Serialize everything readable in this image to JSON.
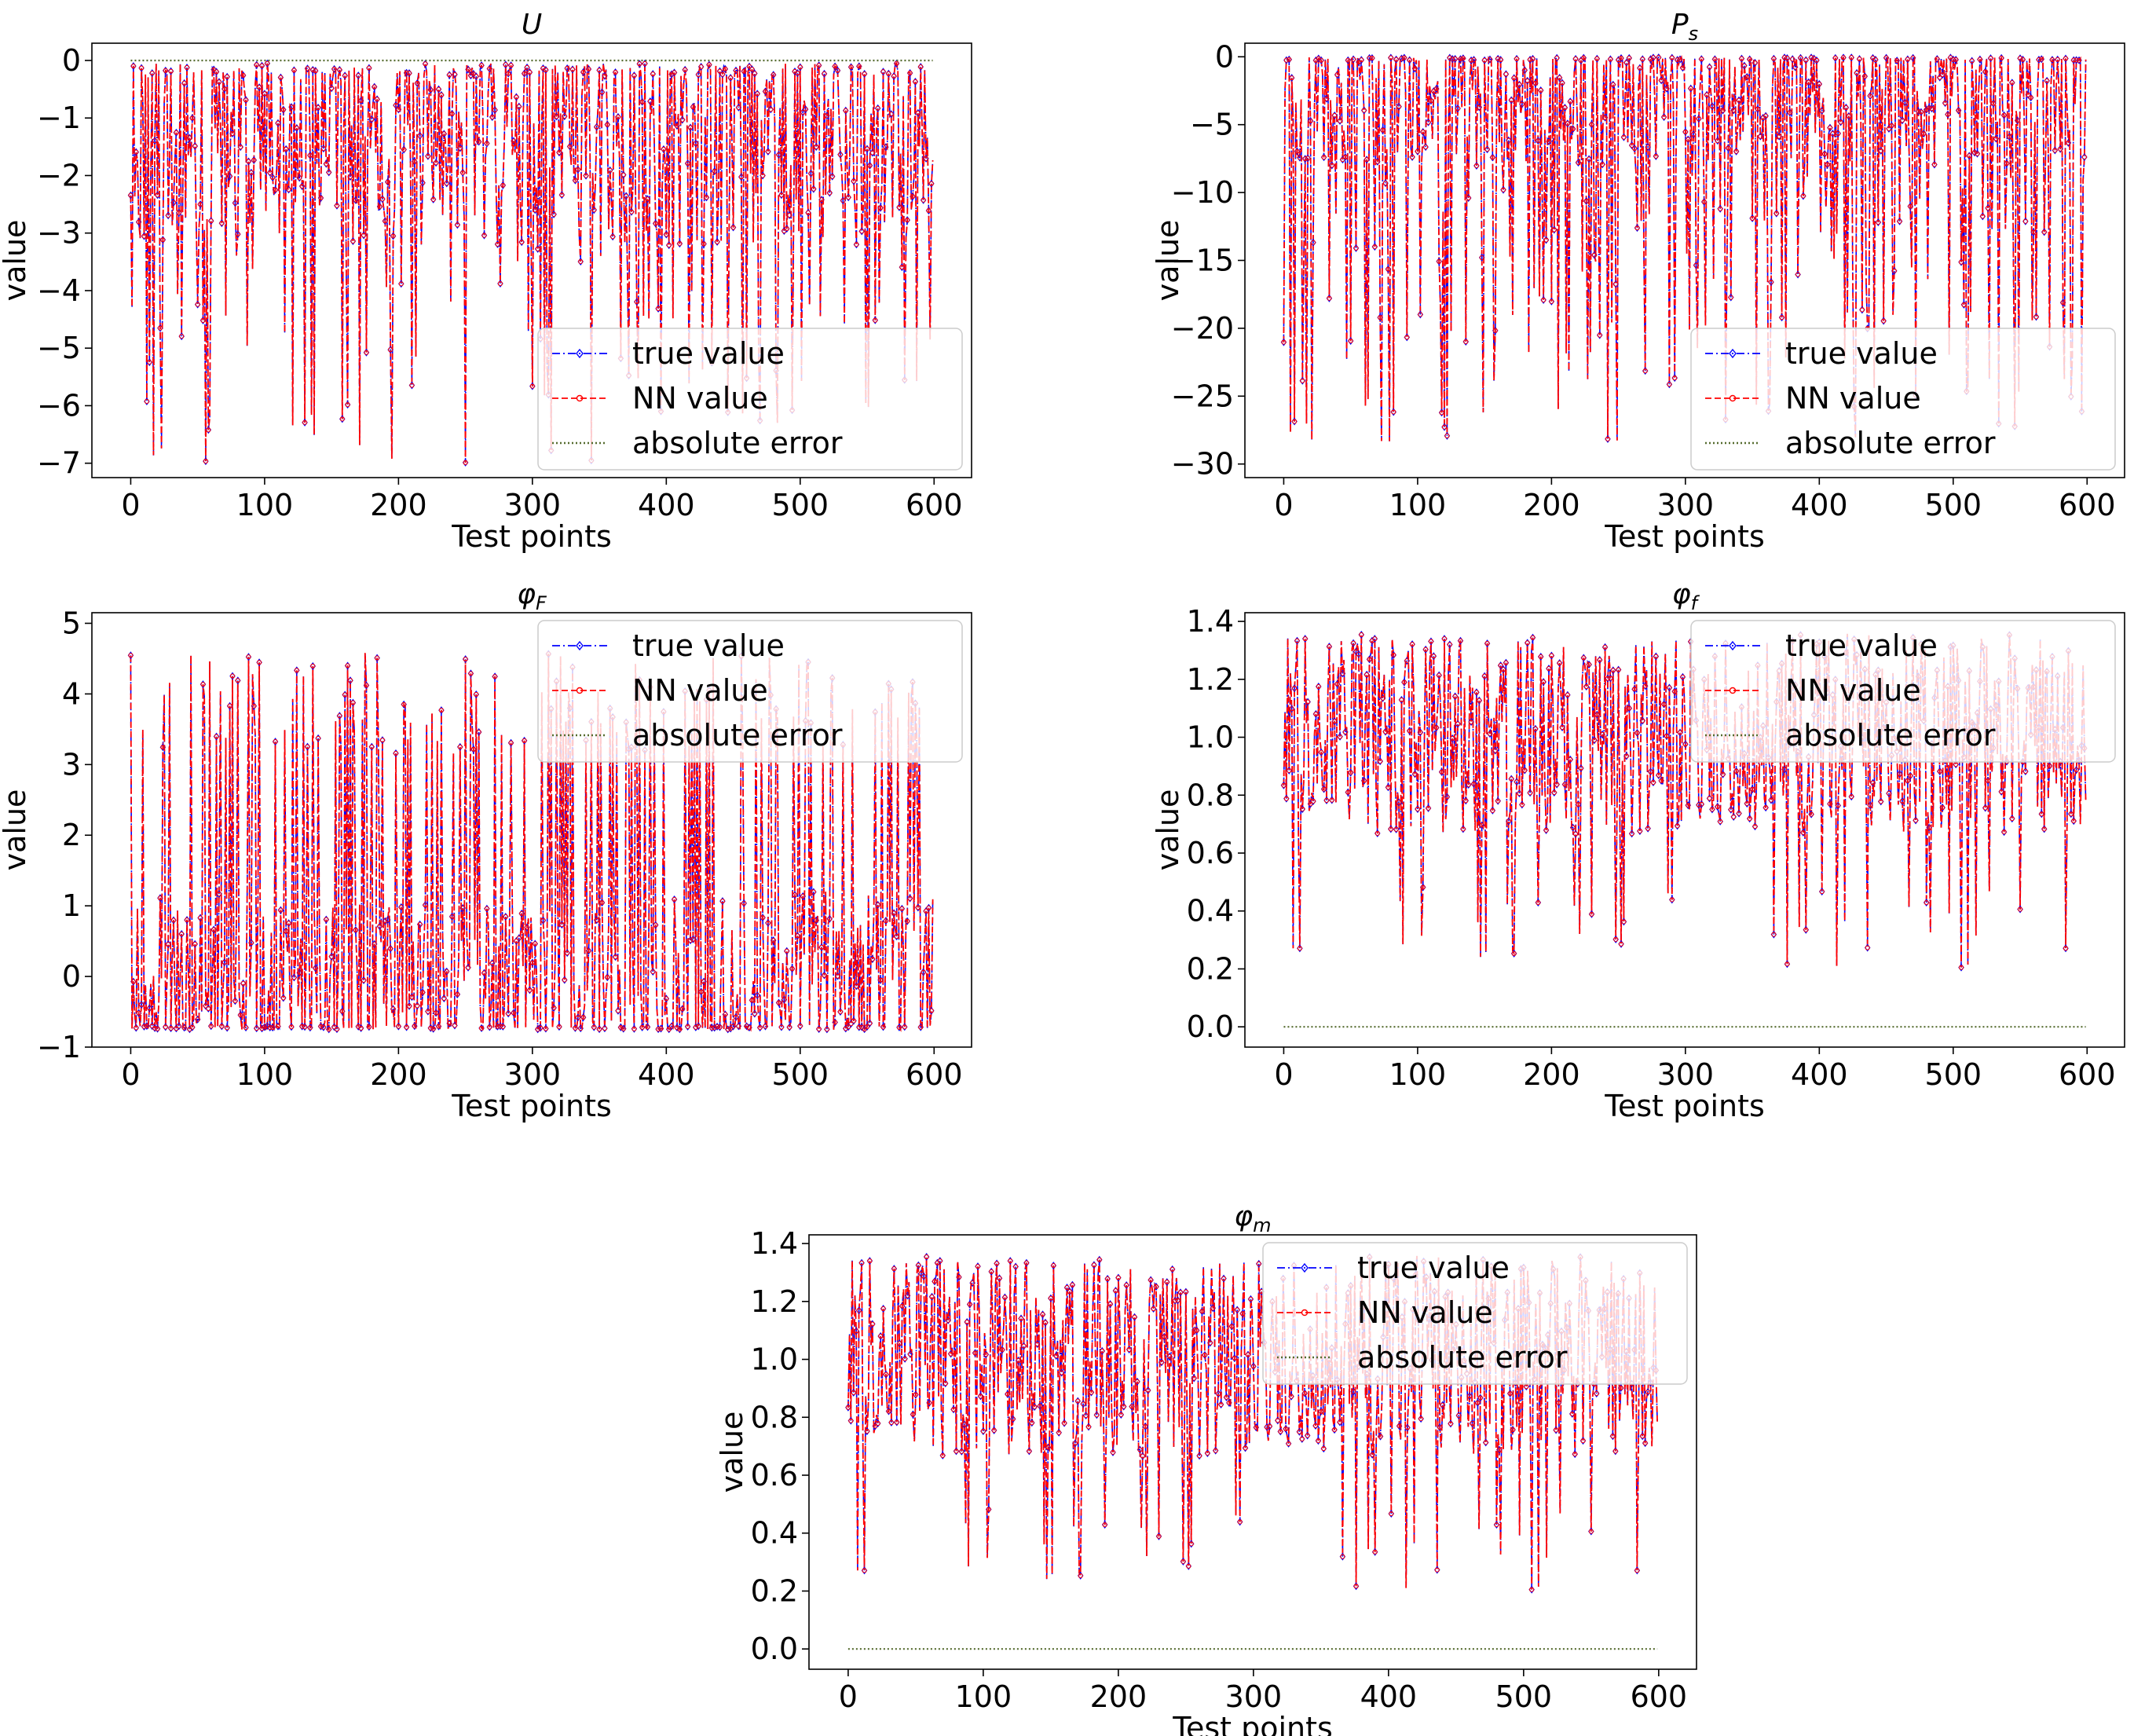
{
  "chart_data": [
    {
      "id": "U",
      "type": "line",
      "title": "U",
      "title_style": "italic",
      "xlabel": "Test points",
      "ylabel": "value",
      "xlim": [
        -29,
        628
      ],
      "ylim": [
        -7.25,
        0.3
      ],
      "xticks": [
        0,
        100,
        200,
        300,
        400,
        500,
        600
      ],
      "xtick_labels": [
        "0",
        "100",
        "200",
        "300",
        "400",
        "500",
        "600"
      ],
      "yticks": [
        0,
        -1,
        -2,
        -3,
        -4,
        -5,
        -6,
        -7
      ],
      "ytick_labels": [
        "0",
        "−1",
        "−2",
        "−3",
        "−4",
        "−5",
        "−6",
        "−7"
      ],
      "grid": false,
      "legend": {
        "position": "lower-right",
        "entries": [
          "true value",
          "NN value",
          "absolute error"
        ]
      },
      "n_points": 600,
      "sim": {
        "mode": "spike",
        "min": -7.0,
        "max": -0.05,
        "base_low": -3.2,
        "base_high": -0.1,
        "spike_prob": 0.2,
        "seed": 11
      },
      "series": [
        {
          "name": "true value",
          "color": "#0000ff",
          "style": "dashdot",
          "marker": "diamond"
        },
        {
          "name": "NN value",
          "color": "#ff0000",
          "style": "dashed",
          "marker": "circle"
        },
        {
          "name": "absolute error",
          "color": "#556b2f",
          "style": "dotted",
          "constant": 0.0
        }
      ]
    },
    {
      "id": "Ps",
      "type": "line",
      "title": "P",
      "title_sub": "s",
      "title_style": "italic",
      "xlabel": "Test points",
      "ylabel": "value",
      "xlim": [
        -29,
        628
      ],
      "ylim": [
        -31,
        1.0
      ],
      "xticks": [
        0,
        100,
        200,
        300,
        400,
        500,
        600
      ],
      "xtick_labels": [
        "0",
        "100",
        "200",
        "300",
        "400",
        "500",
        "600"
      ],
      "yticks": [
        0,
        -5,
        -10,
        -15,
        -20,
        -25,
        -30
      ],
      "ytick_labels": [
        "0",
        "−5",
        "−10",
        "−15",
        "−20",
        "−25",
        "−30"
      ],
      "grid": false,
      "legend": {
        "position": "lower-right",
        "entries": [
          "true value",
          "NN value",
          "absolute error"
        ]
      },
      "n_points": 600,
      "sim": {
        "mode": "spike",
        "min": -28.5,
        "max": -0.05,
        "base_low": -8,
        "base_high": -0.1,
        "spike_prob": 0.3,
        "seed": 23
      },
      "series": [
        {
          "name": "true value",
          "color": "#0000ff",
          "style": "dashdot",
          "marker": "diamond"
        },
        {
          "name": "NN value",
          "color": "#ff0000",
          "style": "dashed",
          "marker": "circle"
        },
        {
          "name": "absolute error",
          "color": "#556b2f",
          "style": "dotted",
          "constant": 0.0,
          "hidden": true
        }
      ]
    },
    {
      "id": "phiF",
      "type": "line",
      "title": "φ",
      "title_sub": "F",
      "title_style": "italic",
      "xlabel": "Test points",
      "ylabel": "value",
      "xlim": [
        -29,
        628
      ],
      "ylim": [
        -1.0,
        5.15
      ],
      "xticks": [
        0,
        100,
        200,
        300,
        400,
        500,
        600
      ],
      "xtick_labels": [
        "0",
        "100",
        "200",
        "300",
        "400",
        "500",
        "600"
      ],
      "yticks": [
        5,
        4,
        3,
        2,
        1,
        0,
        -1
      ],
      "ytick_labels": [
        "5",
        "4",
        "3",
        "2",
        "1",
        "0",
        "−1"
      ],
      "grid": false,
      "legend": {
        "position": "upper-right",
        "entries": [
          "true value",
          "NN value",
          "absolute error"
        ]
      },
      "n_points": 600,
      "sim": {
        "mode": "spike",
        "min": -0.75,
        "max": 4.6,
        "base_low": -0.7,
        "base_high": 1.2,
        "spike_prob": 0.35,
        "seed": 37
      },
      "series": [
        {
          "name": "true value",
          "color": "#0000ff",
          "style": "dashdot",
          "marker": "diamond"
        },
        {
          "name": "NN value",
          "color": "#ff0000",
          "style": "dashed",
          "marker": "circle"
        },
        {
          "name": "absolute error",
          "color": "#556b2f",
          "style": "dotted",
          "constant": 0.0,
          "hidden": true
        }
      ]
    },
    {
      "id": "phif",
      "type": "line",
      "title": "φ",
      "title_sub": "f",
      "title_style": "italic",
      "xlabel": "Test points",
      "ylabel": "value",
      "xlim": [
        -29,
        628
      ],
      "ylim": [
        -0.07,
        1.43
      ],
      "xticks": [
        0,
        100,
        200,
        300,
        400,
        500,
        600
      ],
      "xtick_labels": [
        "0",
        "100",
        "200",
        "300",
        "400",
        "500",
        "600"
      ],
      "yticks": [
        1.4,
        1.2,
        1.0,
        0.8,
        0.6,
        0.4,
        0.2,
        0.0
      ],
      "ytick_labels": [
        "1.4",
        "1.2",
        "1.0",
        "0.8",
        "0.6",
        "0.4",
        "0.2",
        "0.0"
      ],
      "grid": false,
      "legend": {
        "position": "upper-right",
        "entries": [
          "true value",
          "NN value",
          "absolute error"
        ]
      },
      "n_points": 600,
      "sim": {
        "mode": "band",
        "min": 0.2,
        "max": 1.36,
        "center": 1.0,
        "spread": 0.34,
        "seed": 53
      },
      "series": [
        {
          "name": "true value",
          "color": "#0000ff",
          "style": "dashdot",
          "marker": "diamond"
        },
        {
          "name": "NN value",
          "color": "#ff0000",
          "style": "dashed",
          "marker": "circle"
        },
        {
          "name": "absolute error",
          "color": "#556b2f",
          "style": "dotted",
          "constant": 0.0
        }
      ]
    },
    {
      "id": "phim",
      "type": "line",
      "title": "φ",
      "title_sub": "m",
      "title_style": "italic",
      "xlabel": "Test points",
      "ylabel": "value",
      "xlim": [
        -29,
        628
      ],
      "ylim": [
        -0.07,
        1.43
      ],
      "xticks": [
        0,
        100,
        200,
        300,
        400,
        500,
        600
      ],
      "xtick_labels": [
        "0",
        "100",
        "200",
        "300",
        "400",
        "500",
        "600"
      ],
      "yticks": [
        1.4,
        1.2,
        1.0,
        0.8,
        0.6,
        0.4,
        0.2,
        0.0
      ],
      "ytick_labels": [
        "1.4",
        "1.2",
        "1.0",
        "0.8",
        "0.6",
        "0.4",
        "0.2",
        "0.0"
      ],
      "grid": false,
      "legend": {
        "position": "upper-right",
        "entries": [
          "true value",
          "NN value",
          "absolute error"
        ]
      },
      "n_points": 600,
      "sim": {
        "mode": "band",
        "min": 0.2,
        "max": 1.36,
        "center": 1.0,
        "spread": 0.34,
        "seed": 53
      },
      "series": [
        {
          "name": "true value",
          "color": "#0000ff",
          "style": "dashdot",
          "marker": "diamond"
        },
        {
          "name": "NN value",
          "color": "#ff0000",
          "style": "dashed",
          "marker": "circle"
        },
        {
          "name": "absolute error",
          "color": "#556b2f",
          "style": "dotted",
          "constant": 0.0
        }
      ]
    }
  ]
}
